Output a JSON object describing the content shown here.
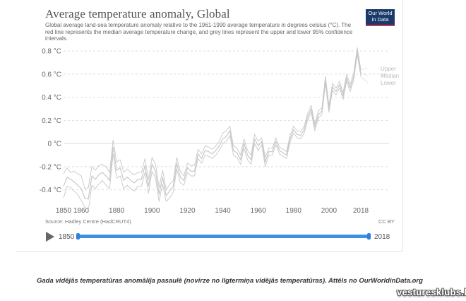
{
  "header": {
    "title": "Average temperature anomaly, Global",
    "subtitle": "Global average land-sea temperature anomaly relative to the 1961-1990 average temperature in degrees celsius (°C). The red line represents the median average temperature change, and grey lines represent the upper and lower 95% confidence intervals.",
    "logo_line1": "Our World",
    "logo_line2": "in Data"
  },
  "footer": {
    "source": "Source: Hadley Centre (HadCRUT4)",
    "license": "CC BY"
  },
  "timeline": {
    "start_label": "1850",
    "end_label": "2018",
    "start_fraction": 0.0,
    "end_fraction": 1.0
  },
  "caption": "Gada vidējās temperatūras anomālija pasaulē (novirze no ilgtermiņa vidējās temperatūras). Attēls no OurWorldinData.org",
  "watermark": "vesturesklubs.lv",
  "colors": {
    "line": "#c8c8c8",
    "grid": "#dddddd",
    "axis_text": "#666666",
    "timeline": "#3e8fe6",
    "logo_bg": "#1a3a6a",
    "logo_accent": "#c8344f"
  },
  "chart_data": {
    "type": "line",
    "title": "Average temperature anomaly, Global",
    "xlim": [
      1850,
      2018
    ],
    "ylim": [
      -0.5,
      0.85
    ],
    "grid": true,
    "legend": "right-end labels",
    "x_ticks": [
      1850,
      1860,
      1880,
      1900,
      1920,
      1940,
      1960,
      1980,
      2000,
      2018
    ],
    "y_ticks": [
      {
        "value": 0.8,
        "label": "0.8 °C"
      },
      {
        "value": 0.6,
        "label": "0.6 °C"
      },
      {
        "value": 0.4,
        "label": "0.4 °C"
      },
      {
        "value": 0.2,
        "label": "0.2 °C"
      },
      {
        "value": 0.0,
        "label": "0 °C"
      },
      {
        "value": -0.2,
        "label": "-0.2 °C"
      },
      {
        "value": -0.4,
        "label": "-0.4 °C"
      }
    ],
    "x": [
      1850,
      1852,
      1854,
      1856,
      1858,
      1860,
      1862,
      1864,
      1866,
      1868,
      1870,
      1872,
      1874,
      1876,
      1878,
      1880,
      1882,
      1884,
      1886,
      1888,
      1890,
      1892,
      1894,
      1896,
      1898,
      1900,
      1902,
      1904,
      1906,
      1908,
      1910,
      1912,
      1914,
      1916,
      1918,
      1920,
      1922,
      1924,
      1926,
      1928,
      1930,
      1932,
      1934,
      1936,
      1938,
      1940,
      1942,
      1944,
      1946,
      1948,
      1950,
      1952,
      1954,
      1956,
      1958,
      1960,
      1962,
      1964,
      1966,
      1968,
      1970,
      1972,
      1974,
      1976,
      1978,
      1980,
      1982,
      1984,
      1986,
      1988,
      1990,
      1992,
      1994,
      1996,
      1998,
      2000,
      2002,
      2004,
      2006,
      2008,
      2010,
      2012,
      2014,
      2016,
      2018
    ],
    "series": [
      {
        "name": "Upper",
        "values": [
          -0.26,
          -0.21,
          -0.25,
          -0.24,
          -0.26,
          -0.28,
          -0.39,
          -0.38,
          -0.2,
          -0.23,
          -0.19,
          -0.18,
          -0.2,
          -0.25,
          0.03,
          -0.16,
          -0.14,
          -0.25,
          -0.22,
          -0.25,
          -0.27,
          -0.25,
          -0.25,
          -0.13,
          -0.31,
          -0.12,
          -0.18,
          -0.38,
          -0.23,
          -0.4,
          -0.35,
          -0.32,
          -0.12,
          -0.24,
          -0.28,
          -0.17,
          -0.19,
          -0.19,
          -0.05,
          -0.09,
          -0.02,
          -0.03,
          -0.05,
          -0.02,
          0.02,
          0.09,
          0.11,
          0.15,
          -0.02,
          -0.04,
          -0.1,
          0.04,
          -0.06,
          -0.1,
          0.08,
          0.02,
          0.05,
          -0.12,
          -0.04,
          -0.04,
          0.05,
          -0.03,
          -0.05,
          -0.07,
          0.07,
          0.15,
          0.11,
          0.1,
          0.15,
          0.26,
          0.33,
          0.17,
          0.28,
          0.31,
          0.58,
          0.33,
          0.52,
          0.48,
          0.54,
          0.44,
          0.6,
          0.51,
          0.61,
          0.83,
          0.64
        ]
      },
      {
        "name": "Median",
        "values": [
          -0.37,
          -0.29,
          -0.31,
          -0.33,
          -0.36,
          -0.39,
          -0.47,
          -0.48,
          -0.28,
          -0.31,
          -0.27,
          -0.25,
          -0.28,
          -0.32,
          -0.03,
          -0.23,
          -0.21,
          -0.32,
          -0.29,
          -0.32,
          -0.34,
          -0.31,
          -0.31,
          -0.19,
          -0.37,
          -0.18,
          -0.24,
          -0.44,
          -0.29,
          -0.45,
          -0.41,
          -0.37,
          -0.17,
          -0.29,
          -0.32,
          -0.21,
          -0.24,
          -0.24,
          -0.09,
          -0.13,
          -0.06,
          -0.07,
          -0.09,
          -0.06,
          -0.02,
          0.04,
          0.06,
          0.11,
          -0.06,
          -0.08,
          -0.14,
          0.0,
          -0.1,
          -0.14,
          0.04,
          -0.02,
          0.02,
          -0.16,
          -0.07,
          -0.07,
          0.02,
          -0.06,
          -0.08,
          -0.1,
          0.04,
          0.12,
          0.08,
          0.07,
          0.12,
          0.23,
          0.3,
          0.14,
          0.25,
          0.28,
          0.55,
          0.3,
          0.49,
          0.45,
          0.51,
          0.41,
          0.57,
          0.48,
          0.58,
          0.8,
          0.61
        ]
      },
      {
        "name": "Lower",
        "values": [
          -0.47,
          -0.37,
          -0.38,
          -0.41,
          -0.44,
          -0.49,
          -0.55,
          -0.58,
          -0.36,
          -0.39,
          -0.35,
          -0.32,
          -0.36,
          -0.39,
          -0.09,
          -0.3,
          -0.28,
          -0.39,
          -0.36,
          -0.39,
          -0.41,
          -0.37,
          -0.37,
          -0.25,
          -0.43,
          -0.24,
          -0.3,
          -0.5,
          -0.35,
          -0.5,
          -0.47,
          -0.42,
          -0.22,
          -0.34,
          -0.36,
          -0.25,
          -0.28,
          -0.28,
          -0.13,
          -0.17,
          -0.1,
          -0.11,
          -0.13,
          -0.1,
          -0.06,
          0.0,
          0.02,
          0.07,
          -0.1,
          -0.12,
          -0.18,
          -0.04,
          -0.14,
          -0.18,
          0.0,
          -0.06,
          -0.01,
          -0.2,
          -0.1,
          -0.1,
          -0.01,
          -0.09,
          -0.11,
          -0.13,
          0.01,
          0.09,
          0.05,
          0.04,
          0.09,
          0.2,
          0.27,
          0.11,
          0.22,
          0.25,
          0.52,
          0.27,
          0.46,
          0.42,
          0.48,
          0.38,
          0.54,
          0.45,
          0.55,
          0.77,
          0.58
        ]
      }
    ]
  }
}
